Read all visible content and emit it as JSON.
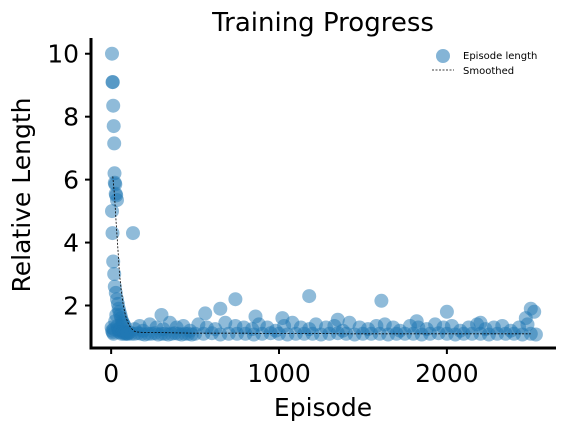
{
  "chart_data": {
    "type": "scatter",
    "title": "Training Progress",
    "xlabel": "Episode",
    "ylabel": "Relative Length",
    "xlim": [
      -120,
      2650
    ],
    "ylim": [
      0.65,
      10.5
    ],
    "xticks": [
      0,
      1000,
      2000
    ],
    "yticks": [
      2,
      4,
      6,
      8,
      10
    ],
    "grid": false,
    "legend_position": "top-right",
    "colors": {
      "points": "#1f77b4",
      "smoothed": "#000000"
    },
    "series": [
      {
        "name": "Episode length",
        "kind": "scatter",
        "x": [
          5,
          8,
          10,
          12,
          15,
          18,
          20,
          22,
          25,
          27,
          30,
          35,
          5,
          8,
          12,
          18,
          22,
          28,
          35,
          40,
          45,
          50,
          55,
          60,
          65,
          70,
          75,
          80,
          3,
          6,
          9,
          14,
          16,
          24,
          31,
          38,
          42,
          48,
          52,
          58,
          62,
          68,
          72,
          78,
          85,
          90,
          95,
          100,
          110,
          120,
          140,
          160,
          180,
          200,
          220,
          240,
          260,
          280,
          300,
          320,
          340,
          360,
          380,
          400,
          420,
          440,
          460,
          480,
          500,
          550,
          600,
          650,
          700,
          750,
          800,
          850,
          900,
          950,
          1000,
          1050,
          1100,
          1150,
          1200,
          1250,
          1300,
          1350,
          1400,
          1450,
          1500,
          1550,
          1600,
          1650,
          1700,
          1750,
          1800,
          1850,
          1900,
          1950,
          2000,
          2050,
          2100,
          2150,
          2200,
          2250,
          2300,
          2350,
          2400,
          2450,
          2500,
          2530,
          140,
          170,
          190,
          230,
          270,
          310,
          350,
          390,
          430,
          470,
          520,
          570,
          620,
          680,
          740,
          790,
          840,
          880,
          930,
          980,
          1030,
          1080,
          1130,
          1180,
          1220,
          1280,
          1330,
          1380,
          1420,
          1480,
          1530,
          1580,
          1630,
          1680,
          1720,
          1780,
          1830,
          1880,
          1930,
          1980,
          2030,
          2080,
          2130,
          2180,
          2230,
          2280,
          2330,
          2380,
          2430,
          2480,
          130,
          300,
          560,
          650,
          740,
          860,
          1020,
          1180,
          1350,
          1610,
          1820,
          2000,
          2200,
          2470,
          2500,
          2520
        ],
        "y": [
          10.0,
          9.1,
          9.1,
          8.35,
          7.7,
          7.15,
          6.2,
          5.9,
          5.85,
          5.55,
          5.5,
          5.35,
          5.0,
          4.3,
          3.4,
          3.0,
          2.6,
          2.4,
          2.2,
          2.05,
          1.9,
          1.8,
          1.7,
          1.6,
          1.5,
          1.45,
          1.4,
          1.35,
          1.3,
          1.2,
          1.15,
          1.1,
          1.25,
          1.5,
          1.7,
          1.35,
          1.25,
          1.15,
          1.2,
          1.3,
          1.1,
          1.15,
          1.2,
          1.1,
          1.15,
          1.1,
          1.12,
          1.1,
          1.15,
          1.1,
          1.1,
          1.12,
          1.1,
          1.08,
          1.1,
          1.1,
          1.12,
          1.08,
          1.1,
          1.1,
          1.08,
          1.1,
          1.12,
          1.1,
          1.08,
          1.1,
          1.1,
          1.08,
          1.1,
          1.1,
          1.12,
          1.08,
          1.1,
          1.1,
          1.1,
          1.08,
          1.1,
          1.12,
          1.1,
          1.08,
          1.1,
          1.1,
          1.1,
          1.08,
          1.1,
          1.12,
          1.1,
          1.08,
          1.1,
          1.1,
          1.1,
          1.08,
          1.1,
          1.1,
          1.1,
          1.08,
          1.1,
          1.12,
          1.1,
          1.08,
          1.1,
          1.1,
          1.1,
          1.08,
          1.1,
          1.1,
          1.1,
          1.08,
          1.1,
          1.08,
          1.25,
          1.35,
          1.2,
          1.4,
          1.3,
          1.25,
          1.45,
          1.3,
          1.35,
          1.2,
          1.4,
          1.3,
          1.25,
          1.45,
          1.35,
          1.3,
          1.25,
          1.4,
          1.3,
          1.2,
          1.35,
          1.45,
          1.3,
          1.25,
          1.4,
          1.3,
          1.35,
          1.2,
          1.45,
          1.3,
          1.25,
          1.35,
          1.4,
          1.3,
          1.2,
          1.35,
          1.3,
          1.25,
          1.4,
          1.3,
          1.35,
          1.2,
          1.3,
          1.4,
          1.25,
          1.3,
          1.35,
          1.2,
          1.3,
          1.4,
          4.3,
          1.7,
          1.75,
          1.9,
          2.2,
          1.65,
          1.6,
          2.3,
          1.55,
          2.15,
          1.5,
          1.8,
          1.45,
          1.6,
          1.9,
          1.8
        ]
      },
      {
        "name": "Smoothed",
        "kind": "line",
        "x": [
          10,
          20,
          30,
          40,
          50,
          60,
          70,
          80,
          90,
          100,
          110,
          120,
          130,
          140,
          150,
          200,
          300,
          400,
          500,
          600,
          700,
          800,
          900,
          1000,
          1200,
          1400,
          1600,
          1800,
          2000,
          2200,
          2400,
          2500
        ],
        "y": [
          6.1,
          5.5,
          4.6,
          3.8,
          3.0,
          2.5,
          2.1,
          1.8,
          1.6,
          1.45,
          1.35,
          1.28,
          1.22,
          1.18,
          1.16,
          1.14,
          1.14,
          1.13,
          1.12,
          1.12,
          1.12,
          1.12,
          1.11,
          1.11,
          1.11,
          1.1,
          1.1,
          1.1,
          1.1,
          1.1,
          1.1,
          1.1
        ]
      }
    ]
  }
}
